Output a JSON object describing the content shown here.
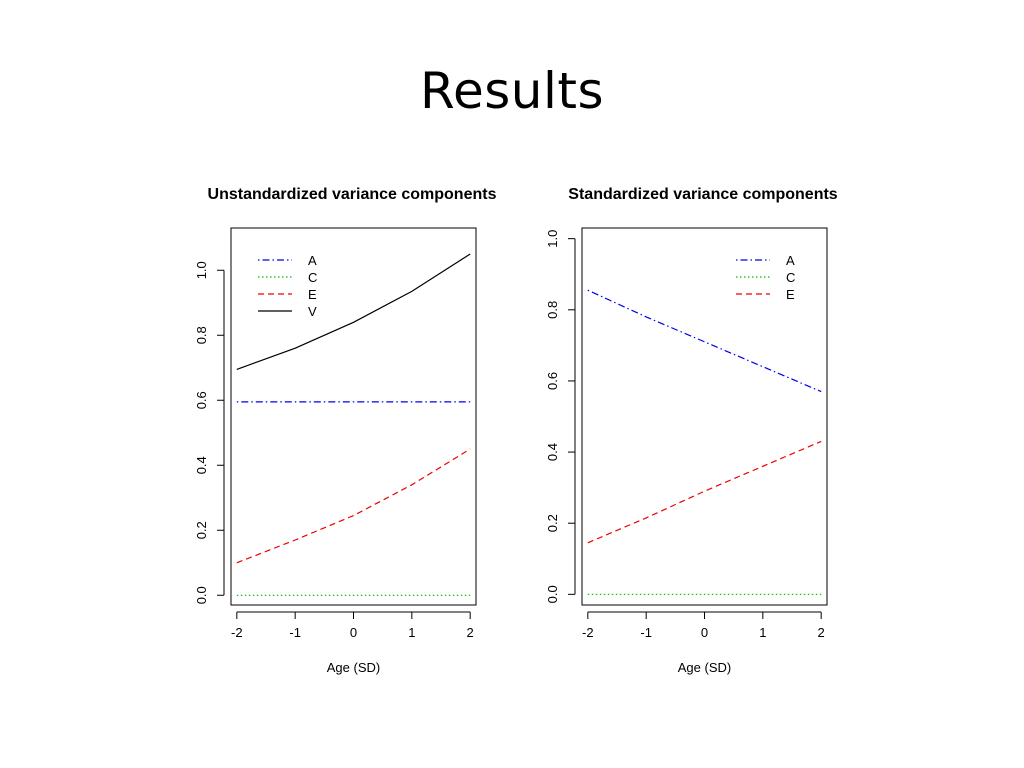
{
  "slide": {
    "title": "Results"
  },
  "colors": {
    "A": "#0000ee",
    "C": "#00bb00",
    "E": "#ee0000",
    "V": "#000000"
  },
  "chart_data": [
    {
      "type": "line",
      "title": "Unstandardized variance components",
      "xlabel": "Age (SD)",
      "ylabel": "",
      "xlim": [
        -2.1,
        2.1
      ],
      "ylim": [
        -0.03,
        1.13
      ],
      "xticks": [
        -2,
        -1,
        0,
        1,
        2
      ],
      "yticks": [
        0.0,
        0.2,
        0.4,
        0.6,
        0.8,
        1.0
      ],
      "ytick_labels": [
        "0.0",
        "0.2",
        "0.4",
        "0.6",
        "0.8",
        "1.0"
      ],
      "legend_position": "top-left",
      "series": [
        {
          "name": "A",
          "style": "dotdash",
          "x": [
            -2,
            -1,
            0,
            1,
            2
          ],
          "y": [
            0.595,
            0.595,
            0.595,
            0.595,
            0.595
          ]
        },
        {
          "name": "C",
          "style": "dotted",
          "x": [
            -2,
            -1,
            0,
            1,
            2
          ],
          "y": [
            0.0,
            0.0,
            0.0,
            0.0,
            0.0
          ]
        },
        {
          "name": "E",
          "style": "dashed",
          "x": [
            -2,
            -1,
            0,
            1,
            2
          ],
          "y": [
            0.1,
            0.17,
            0.245,
            0.34,
            0.45
          ]
        },
        {
          "name": "V",
          "style": "solid",
          "x": [
            -2,
            -1,
            0,
            1,
            2
          ],
          "y": [
            0.695,
            0.76,
            0.84,
            0.935,
            1.05
          ]
        }
      ]
    },
    {
      "type": "line",
      "title": "Standardized variance components",
      "xlabel": "Age (SD)",
      "ylabel": "",
      "xlim": [
        -2.1,
        2.1
      ],
      "ylim": [
        -0.03,
        1.03
      ],
      "xticks": [
        -2,
        -1,
        0,
        1,
        2
      ],
      "yticks": [
        0.0,
        0.2,
        0.4,
        0.6,
        0.8,
        1.0
      ],
      "ytick_labels": [
        "0.0",
        "0.2",
        "0.4",
        "0.6",
        "0.8",
        "1.0"
      ],
      "legend_position": "top-right",
      "series": [
        {
          "name": "A",
          "style": "dotdash",
          "x": [
            -2,
            -1,
            0,
            1,
            2
          ],
          "y": [
            0.855,
            0.78,
            0.71,
            0.64,
            0.57
          ]
        },
        {
          "name": "C",
          "style": "dotted",
          "x": [
            -2,
            -1,
            0,
            1,
            2
          ],
          "y": [
            0.0,
            0.0,
            0.0,
            0.0,
            0.0
          ]
        },
        {
          "name": "E",
          "style": "dashed",
          "x": [
            -2,
            -1,
            0,
            1,
            2
          ],
          "y": [
            0.145,
            0.215,
            0.29,
            0.36,
            0.43
          ]
        }
      ]
    }
  ]
}
